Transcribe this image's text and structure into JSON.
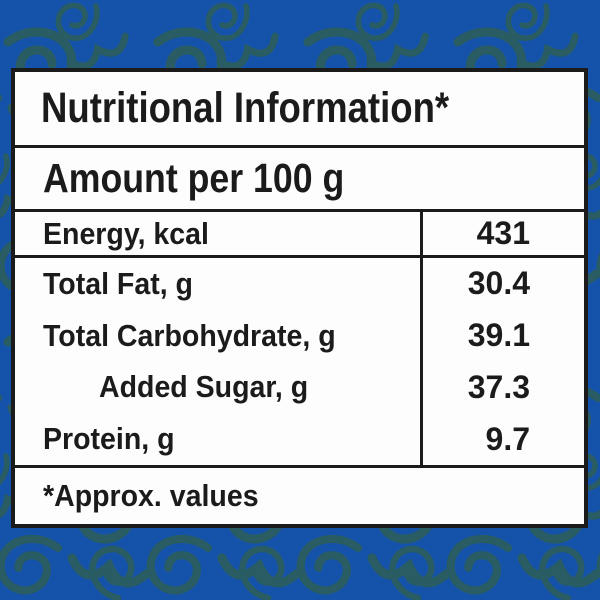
{
  "theme": {
    "background_blue": "#1552a9",
    "swirl_teal": "#2c5f5c",
    "table_background": "#fdfdfd",
    "ink": "#1b1b1b"
  },
  "table": {
    "title": "Nutritional Information*",
    "serving_header": "Amount per 100 g",
    "energy": {
      "label": "Energy, kcal",
      "value": "431"
    },
    "nutrients": [
      {
        "label": "Total Fat, g",
        "value": "30.4"
      },
      {
        "label": "Total Carbohydrate, g",
        "value": "39.1"
      },
      {
        "label": "Added Sugar, g",
        "value": "37.3"
      },
      {
        "label": "Protein, g",
        "value": "9.7"
      }
    ],
    "footnote": "*Approx. values"
  }
}
